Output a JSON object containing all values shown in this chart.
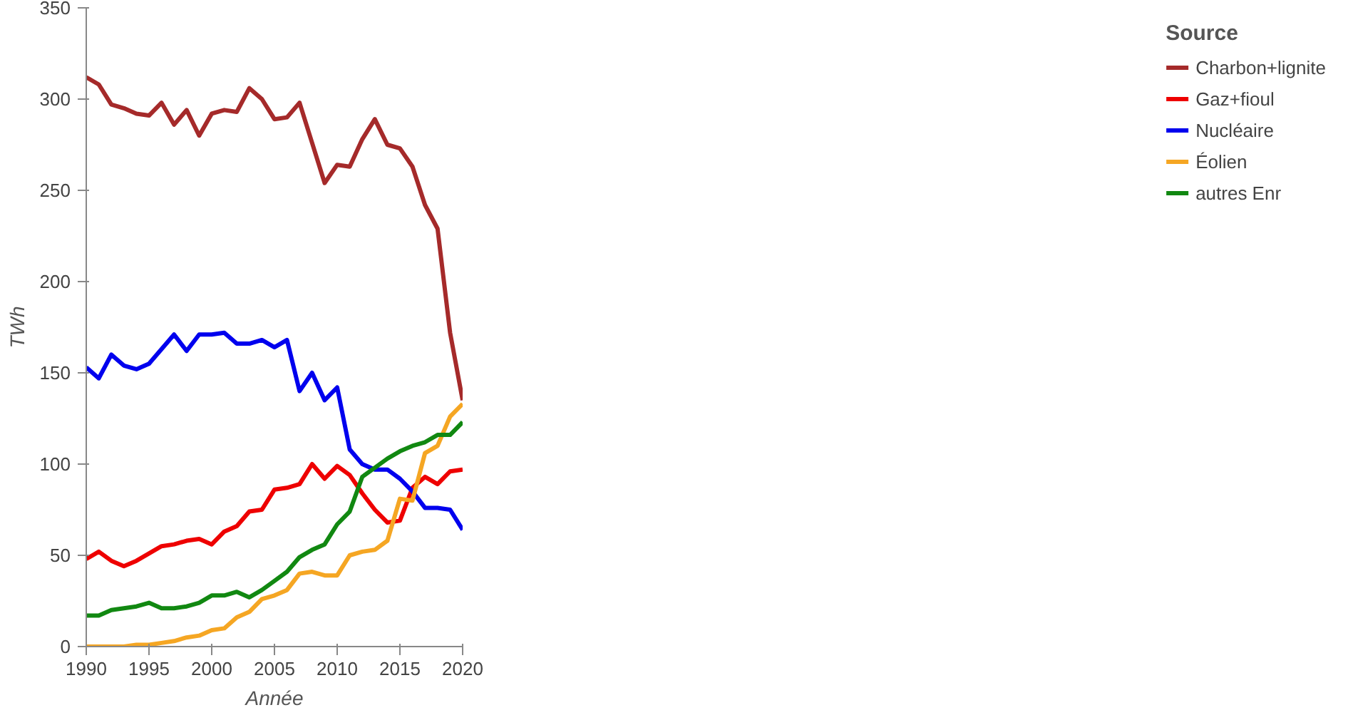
{
  "chart_data": {
    "type": "line",
    "xlabel": "Année",
    "ylabel": "TWh",
    "legend_title": "Source",
    "legend": "right",
    "grid": false,
    "x": [
      1990,
      1991,
      1992,
      1993,
      1994,
      1995,
      1996,
      1997,
      1998,
      1999,
      2000,
      2001,
      2002,
      2003,
      2004,
      2005,
      2006,
      2007,
      2008,
      2009,
      2010,
      2011,
      2012,
      2013,
      2014,
      2015,
      2016,
      2017,
      2018,
      2019,
      2020
    ],
    "xlim": [
      1990,
      2020
    ],
    "xticks": [
      1990,
      1995,
      2000,
      2005,
      2010,
      2015,
      2020
    ],
    "ylim": [
      0,
      350
    ],
    "yticks": [
      0,
      50,
      100,
      150,
      200,
      250,
      300,
      350
    ],
    "series": [
      {
        "name": "Charbon+lignite",
        "color": "#a52a2a",
        "values": [
          312,
          308,
          297,
          295,
          292,
          291,
          298,
          286,
          294,
          280,
          292,
          294,
          293,
          306,
          300,
          289,
          290,
          298,
          276,
          254,
          264,
          263,
          278,
          289,
          275,
          273,
          263,
          242,
          229,
          172,
          135
        ]
      },
      {
        "name": "Gaz+fioul",
        "color": "#ee0000",
        "values": [
          48,
          52,
          47,
          44,
          47,
          51,
          55,
          56,
          58,
          59,
          56,
          63,
          66,
          74,
          75,
          86,
          87,
          89,
          100,
          92,
          99,
          94,
          84,
          75,
          68,
          69,
          87,
          93,
          89,
          96,
          97
        ]
      },
      {
        "name": "Nucléaire",
        "color": "#0000ee",
        "values": [
          153,
          147,
          160,
          154,
          152,
          155,
          163,
          171,
          162,
          171,
          171,
          172,
          166,
          166,
          168,
          164,
          168,
          140,
          150,
          135,
          142,
          108,
          100,
          97,
          97,
          92,
          85,
          76,
          76,
          75,
          64
        ]
      },
      {
        "name": "Éolien",
        "color": "#f5a623",
        "values": [
          0,
          0,
          0,
          0,
          1,
          1,
          2,
          3,
          5,
          6,
          9,
          10,
          16,
          19,
          26,
          28,
          31,
          40,
          41,
          39,
          39,
          50,
          52,
          53,
          58,
          81,
          80,
          106,
          110,
          126,
          133
        ]
      },
      {
        "name": "autres Enr",
        "color": "#118811",
        "values": [
          17,
          17,
          20,
          21,
          22,
          24,
          21,
          21,
          22,
          24,
          28,
          28,
          30,
          27,
          31,
          36,
          41,
          49,
          53,
          56,
          67,
          74,
          93,
          98,
          103,
          107,
          110,
          112,
          116,
          116,
          123
        ]
      }
    ]
  }
}
